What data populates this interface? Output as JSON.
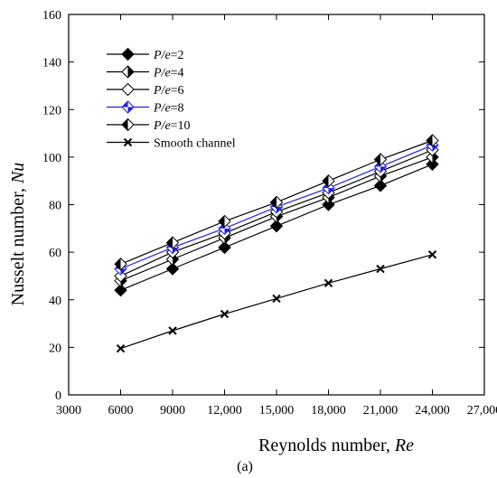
{
  "chart_data": {
    "type": "line",
    "xlabel": {
      "text": "Reynolds number, ",
      "italic": "Re"
    },
    "ylabel": {
      "text": "Nusselt number, ",
      "italic": "Nu"
    },
    "caption": "(a)",
    "xlim": [
      3000,
      27000
    ],
    "ylim": [
      0,
      160
    ],
    "x_ticks": [
      3000,
      6000,
      9000,
      12000,
      15000,
      18000,
      21000,
      24000,
      27000
    ],
    "x_tick_labels": [
      "3000",
      "6000",
      "9000",
      "12,000",
      "15,000",
      "18,000",
      "21,000",
      "24,000",
      "27,000"
    ],
    "y_ticks": [
      0,
      20,
      40,
      60,
      80,
      100,
      120,
      140,
      160
    ],
    "y_tick_labels": [
      "0",
      "20",
      "40",
      "60",
      "80",
      "100",
      "120",
      "140",
      "160"
    ],
    "grid": false,
    "legend_position": "top-left",
    "x": [
      6000,
      9000,
      12000,
      15000,
      18000,
      21000,
      24000
    ],
    "series": [
      {
        "name": "P/e=2",
        "name_italic": "P/e",
        "name_rest": "=2",
        "marker": "diamond-filled",
        "color": "#000000",
        "values": [
          44,
          53,
          62,
          71,
          80,
          88,
          97
        ]
      },
      {
        "name": "P/e=4",
        "name_italic": "P/e",
        "name_rest": "=4",
        "marker": "diamond-right",
        "color": "#000000",
        "values": [
          48,
          57,
          66,
          75,
          83,
          92,
          100
        ]
      },
      {
        "name": "P/e=6",
        "name_italic": "P/e",
        "name_rest": "=6",
        "marker": "diamond-open",
        "color": "#000000",
        "values": [
          50,
          60,
          68,
          77,
          85,
          94,
          103
        ]
      },
      {
        "name": "P/e=8",
        "name_italic": "P/e",
        "name_rest": "=8",
        "marker": "diamond-blue",
        "color": "#1e1ee6",
        "values": [
          53,
          62,
          70,
          79,
          87,
          96,
          105
        ]
      },
      {
        "name": "P/e=10",
        "name_italic": "P/e",
        "name_rest": "=10",
        "marker": "diamond-left",
        "color": "#000000",
        "values": [
          55,
          64,
          73,
          81,
          90,
          99,
          107
        ]
      },
      {
        "name": "Smooth channel",
        "name_italic": "",
        "name_rest": "Smooth channel",
        "marker": "cross",
        "color": "#000000",
        "values": [
          19.5,
          27,
          34,
          40.5,
          47,
          53,
          59
        ]
      }
    ]
  }
}
